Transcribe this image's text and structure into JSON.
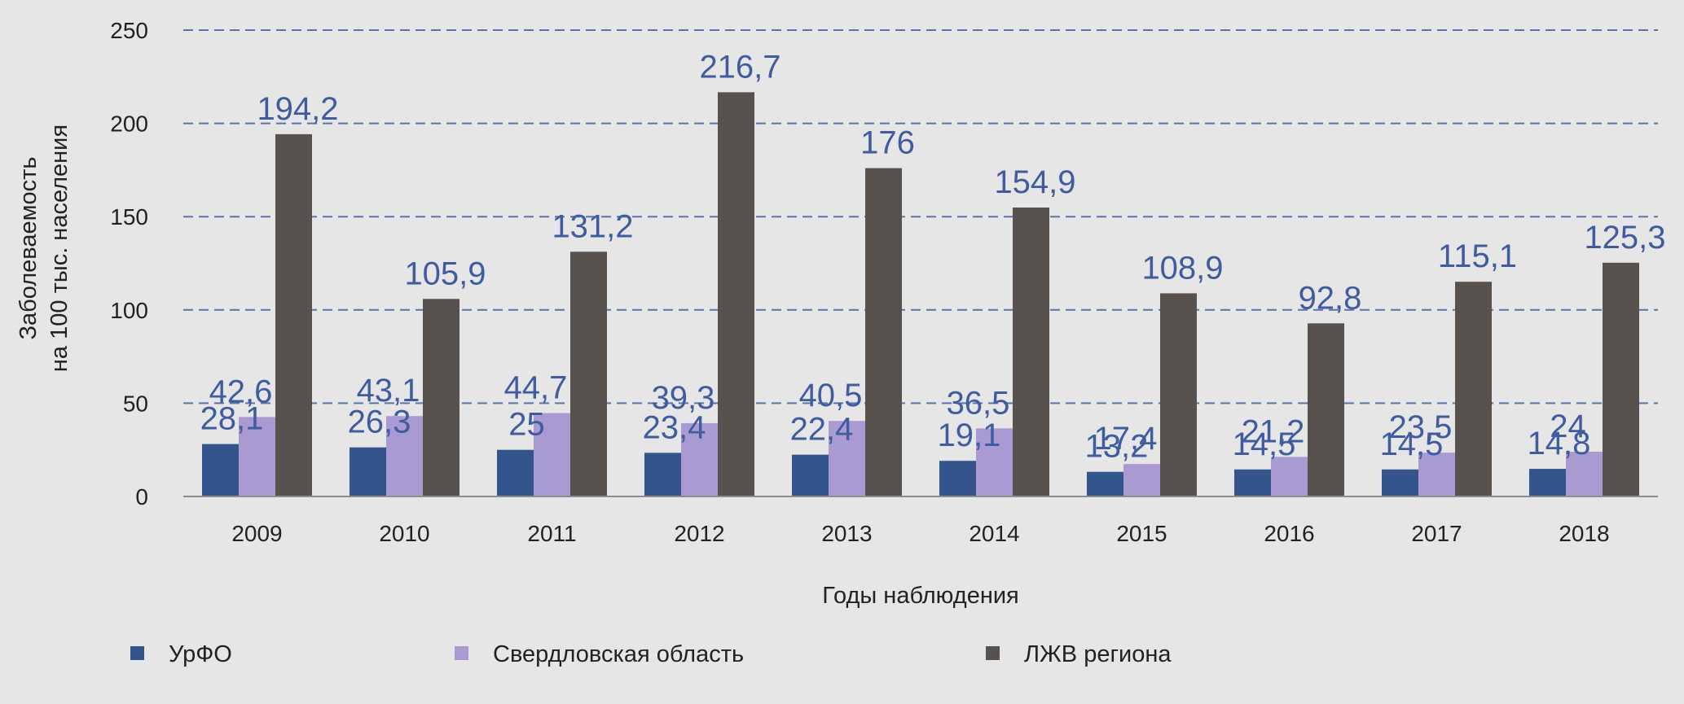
{
  "chart_data": {
    "type": "bar",
    "title": "",
    "xlabel": "Годы наблюдения",
    "ylabel_lines": [
      "Заболеваемость",
      "на 100 тыс. населения"
    ],
    "ylim": [
      0,
      250
    ],
    "yticks": [
      0,
      50,
      100,
      150,
      200,
      250
    ],
    "grid": true,
    "legend_position": "bottom",
    "categories": [
      "2009",
      "2010",
      "2011",
      "2012",
      "2013",
      "2014",
      "2015",
      "2016",
      "2017",
      "2018"
    ],
    "series": [
      {
        "name": "УрФО",
        "color": "#34558b",
        "values": [
          28.1,
          26.3,
          25,
          23.4,
          22.4,
          19.1,
          13.2,
          14.5,
          14.5,
          14.8
        ],
        "labels": [
          "28,1",
          "26,3",
          "25",
          "23,4",
          "22,4",
          "19,1",
          "13,2",
          "14,5",
          "14,5",
          "14,8"
        ]
      },
      {
        "name": "Свердловская область",
        "color": "#a99bd1",
        "values": [
          42.6,
          43.1,
          44.7,
          39.3,
          40.5,
          36.5,
          17.4,
          21.2,
          23.5,
          24
        ],
        "labels": [
          "42,6",
          "43,1",
          "44,7",
          "39,3",
          "40,5",
          "36,5",
          "17,4",
          "21,2",
          "23,5",
          "24"
        ]
      },
      {
        "name": "ЛЖВ региона",
        "color": "#57524e",
        "values": [
          194.2,
          105.9,
          131.2,
          216.7,
          176,
          154.9,
          108.9,
          92.8,
          115.1,
          125.3
        ],
        "labels": [
          "194,2",
          "105,9",
          "131,2",
          "216,7",
          "176",
          "154,9",
          "108,9",
          "92,8",
          "115,1",
          "125,3"
        ]
      }
    ]
  }
}
